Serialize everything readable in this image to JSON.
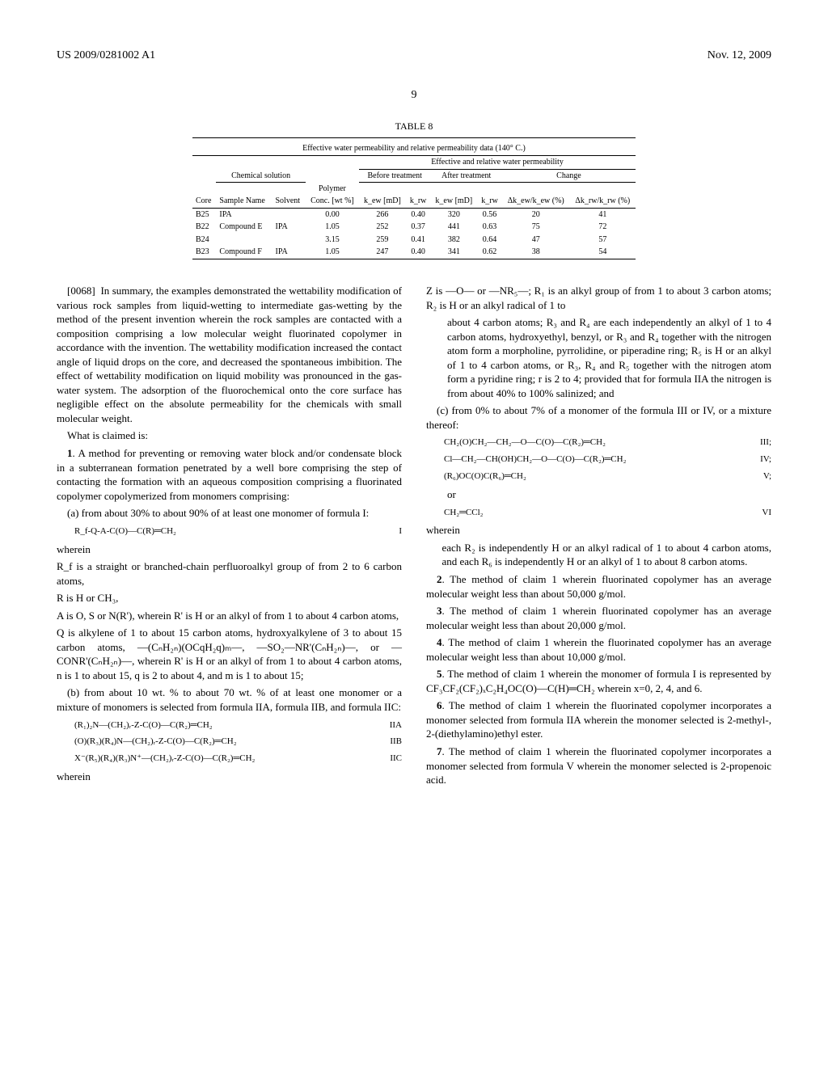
{
  "header": {
    "left": "US 2009/0281002 A1",
    "right": "Nov. 12, 2009"
  },
  "page_number": "9",
  "table8": {
    "caption": "TABLE 8",
    "title": "Effective water permeability and relative permeability data (140° C.)",
    "group_headers": {
      "chem_solution": "Chemical solution",
      "eff_rel": "Effective and relative water permeability",
      "before": "Before treatment",
      "after": "After treatment",
      "change": "Change",
      "polymer": "Polymer"
    },
    "col_headers": {
      "core": "Core",
      "sample": "Sample Name",
      "solvent": "Solvent",
      "conc": "Conc. [wt %]",
      "kew_b": "k_ew [mD]",
      "krw_b": "k_rw",
      "kew_a": "k_ew [mD]",
      "krw_a": "k_rw",
      "dk1": "Δk_ew/k_ew (%)",
      "dk2": "Δk_rw/k_rw (%)"
    },
    "rows": [
      {
        "core": "B25",
        "sample": "IPA",
        "solvent": "",
        "conc": "0.00",
        "kewb": "266",
        "krwb": "0.40",
        "kewa": "320",
        "krwa": "0.56",
        "d1": "20",
        "d2": "41"
      },
      {
        "core": "B22",
        "sample": "Compound E",
        "solvent": "IPA",
        "conc": "1.05",
        "kewb": "252",
        "krwb": "0.37",
        "kewa": "441",
        "krwa": "0.63",
        "d1": "75",
        "d2": "72"
      },
      {
        "core": "B24",
        "sample": "",
        "solvent": "",
        "conc": "3.15",
        "kewb": "259",
        "krwb": "0.41",
        "kewa": "382",
        "krwa": "0.64",
        "d1": "47",
        "d2": "57"
      },
      {
        "core": "B23",
        "sample": "Compound F",
        "solvent": "IPA",
        "conc": "1.05",
        "kewb": "247",
        "krwb": "0.40",
        "kewa": "341",
        "krwa": "0.62",
        "d1": "38",
        "d2": "54"
      }
    ]
  },
  "paragraphs": {
    "p0068_num": "[0068]",
    "p0068": "In summary, the examples demonstrated the wettability modification of various rock samples from liquid-wetting to intermediate gas-wetting by the method of the present invention wherein the rock samples are contacted with a composition comprising a low molecular weight fluorinated copolymer in accordance with the invention. The wettability modification increased the contact angle of liquid drops on the core, and decreased the spontaneous imbibition. The effect of wettability modification on liquid mobility was pronounced in the gas-water system. The adsorption of the fluorochemical onto the core surface has negligible effect on the absolute permeability for the chemicals with small molecular weight.",
    "claims_intro": "What is claimed is:",
    "c1_start": "A method for preventing or removing water block and/or condensate block in a subterranean formation penetrated by a well bore comprising the step of contacting the formation with an aqueous composition comprising a fluorinated copolymer copolymerized from monomers comprising:",
    "c1_a": "(a) from about 30% to about 90% of at least one monomer of formula I:",
    "f_I": "R_f-Q-A-C(O)—C(R)═CH₂",
    "f_I_label": "I",
    "wherein1": "wherein",
    "rf_line": "R_f is a straight or branched-chain perfluoroalkyl group of from 2 to 6 carbon atoms,",
    "r_line": "R is H or CH₃,",
    "a_line": "A is O, S or N(R'), wherein R' is H or an alkyl of from 1 to about 4 carbon atoms,",
    "q_line": "Q is alkylene of 1 to about 15 carbon atoms, hydroxyalkylene of 3 to about 15 carbon atoms, —(CₙH₂ₙ)(OCqH₂q)ₘ—, —SO₂—NR'(CₙH₂ₙ)—, or —CONR'(CₙH₂ₙ)—, wherein R' is H or an alkyl of from 1 to about 4 carbon atoms, n is 1 to about 15, q is 2 to about 4, and m is 1 to about 15;",
    "c1_b": "(b) from about 10 wt. % to about 70 wt. % of at least one monomer or a mixture of monomers is selected from formula IIA, formula IIB, and formula IIC:",
    "f_IIA": "(R₁)₂N—(CH₂)ᵣ-Z-C(O)—C(R₂)═CH₂",
    "f_IIA_label": "IIA",
    "f_IIB": "(O)(R₃)(R₄)N—(CH₂)ᵣ-Z-C(O)—C(R₂)═CH₂",
    "f_IIB_label": "IIB",
    "f_IIC": "X⁻(R₅)(R₄)(R₃)N⁺—(CH₂)ᵣ-Z-C(O)—C(R₂)═CH₂",
    "f_IIC_label": "IIC",
    "wherein2": "wherein",
    "z_line": "Z is —O— or —NR₅—; R₁ is an alkyl group of from 1 to about 3 carbon atoms; R₂ is H or an alkyl radical of 1 to",
    "col2_cont": "about 4 carbon atoms; R₃ and R₄ are each independently an alkyl of 1 to 4 carbon atoms, hydroxyethyl, benzyl, or R₃ and R₄ together with the nitrogen atom form a morpholine, pyrrolidine, or piperadine ring; R₅ is H or an alkyl of 1 to 4 carbon atoms, or R₃, R₄ and R₅ together with the nitrogen atom form a pyridine ring; r is 2 to 4; provided that for formula IIA the nitrogen is from about 40% to 100% salinized; and",
    "c1_c": "(c) from 0% to about 7% of a monomer of the formula III or IV, or a mixture thereof:",
    "f_III": "CH₂(O)CH₂—CH₂—O—C(O)—C(R₂)═CH₂",
    "f_III_label": "III;",
    "f_IV": "Cl—CH₂—CH(OH)CH₂—O—C(O)—C(R₂)═CH₂",
    "f_IV_label": "IV;",
    "f_V": "(R₆)OC(O)C(R₆)═CH₂",
    "f_V_label": "V;",
    "or_text": "or",
    "f_VI": "CH₂═CCl₂",
    "f_VI_label": "VI",
    "wherein3": "wherein",
    "r2r6": "each R₂ is independently H or an alkyl radical of 1 to about 4 carbon atoms, and each R₆ is independently H or an alkyl of 1 to about 8 carbon atoms.",
    "c2": "The method of claim 1 wherein fluorinated copolymer has an average molecular weight less than about 50,000 g/mol.",
    "c3": "The method of claim 1 wherein fluorinated copolymer has an average molecular weight less than about 20,000 g/mol.",
    "c4": "The method of claim 1 wherein the fluorinated copolymer has an average molecular weight less than about 10,000 g/mol.",
    "c5": "The method of claim 1 wherein the monomer of formula I is represented by CF₃CF₂(CF₂)ₓC₂H₄OC(O)—C(H)═CH₂ wherein x=0, 2, 4, and 6.",
    "c6": "The method of claim 1 wherein the fluorinated copolymer incorporates a monomer selected from formula IIA wherein the monomer selected is 2-methyl-, 2-(diethylamino)ethyl ester.",
    "c7": "The method of claim 1 wherein the fluorinated copolymer incorporates a monomer selected from formula V wherein the monomer selected is 2-propenoic acid."
  },
  "numbers": {
    "n1": "1",
    "n2": "2",
    "n3": "3",
    "n4": "4",
    "n5": "5",
    "n6": "6",
    "n7": "7"
  }
}
